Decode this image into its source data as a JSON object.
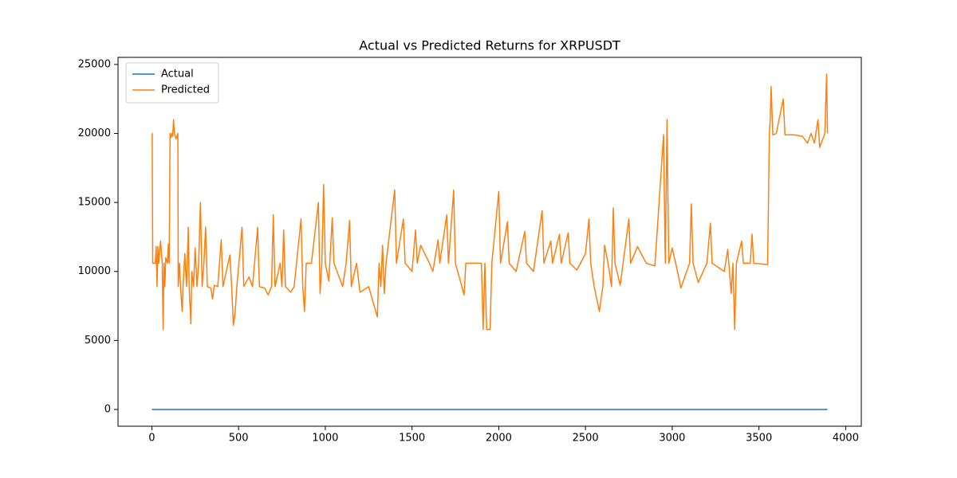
{
  "chart_data": {
    "type": "line",
    "title": "Actual vs Predicted Returns for XRPUSDT",
    "xlim": [
      -195,
      4090
    ],
    "ylim": [
      -1215,
      25515
    ],
    "xticks": [
      0,
      500,
      1000,
      1500,
      2000,
      2500,
      3000,
      3500,
      4000
    ],
    "yticks": [
      0,
      5000,
      10000,
      15000,
      20000,
      25000
    ],
    "legend": "upper left",
    "series": [
      {
        "name": "Actual",
        "color": "#1f77b4",
        "x": [
          0,
          3895
        ],
        "values": [
          0,
          0
        ]
      },
      {
        "name": "Predicted",
        "color": "#ff7f0e",
        "x": [
          0,
          2,
          5,
          20,
          25,
          30,
          35,
          40,
          50,
          60,
          65,
          70,
          75,
          80,
          90,
          95,
          100,
          105,
          110,
          115,
          120,
          125,
          130,
          140,
          150,
          152,
          160,
          165,
          175,
          180,
          190,
          200,
          210,
          215,
          225,
          230,
          240,
          250,
          260,
          270,
          280,
          290,
          300,
          310,
          320,
          340,
          350,
          360,
          380,
          400,
          410,
          450,
          460,
          470,
          480,
          490,
          520,
          530,
          560,
          580,
          610,
          620,
          650,
          670,
          690,
          700,
          710,
          740,
          750,
          760,
          770,
          800,
          820,
          860,
          870,
          880,
          890,
          920,
          960,
          970,
          980,
          990,
          1000,
          1020,
          1040,
          1050,
          1100,
          1120,
          1140,
          1150,
          1180,
          1200,
          1250,
          1300,
          1310,
          1320,
          1330,
          1340,
          1350,
          1400,
          1410,
          1450,
          1460,
          1500,
          1520,
          1530,
          1550,
          1600,
          1620,
          1650,
          1660,
          1700,
          1710,
          1740,
          1750,
          1800,
          1810,
          1900,
          1910,
          1920,
          1930,
          1950,
          1960,
          2000,
          2010,
          2050,
          2060,
          2100,
          2150,
          2160,
          2200,
          2250,
          2260,
          2300,
          2310,
          2350,
          2360,
          2400,
          2410,
          2450,
          2500,
          2520,
          2530,
          2550,
          2580,
          2600,
          2610,
          2630,
          2650,
          2660,
          2670,
          2700,
          2750,
          2760,
          2800,
          2850,
          2900,
          2950,
          2960,
          2970,
          2980,
          3000,
          3020,
          3050,
          3100,
          3110,
          3120,
          3150,
          3200,
          3220,
          3230,
          3300,
          3320,
          3340,
          3350,
          3360,
          3370,
          3400,
          3410,
          3450,
          3460,
          3470,
          3550,
          3560,
          3565,
          3570,
          3580,
          3600,
          3640,
          3650,
          3700,
          3750,
          3780,
          3800,
          3820,
          3840,
          3850,
          3880,
          3890,
          3895
        ],
        "values": [
          20000,
          20000,
          10600,
          10600,
          11800,
          8900,
          11800,
          10600,
          12200,
          10600,
          5800,
          10600,
          8900,
          11000,
          10600,
          12000,
          10600,
          20000,
          19700,
          20000,
          19800,
          21000,
          20000,
          19600,
          20000,
          8900,
          10600,
          8900,
          7100,
          8900,
          11300,
          8900,
          13200,
          8900,
          6200,
          10000,
          8900,
          11700,
          8900,
          10600,
          15000,
          8900,
          10600,
          13200,
          8900,
          8800,
          8000,
          9000,
          8900,
          12300,
          8900,
          11200,
          8900,
          6100,
          7000,
          8900,
          13200,
          8900,
          9600,
          8900,
          13200,
          8900,
          8800,
          8300,
          8900,
          14100,
          8900,
          10600,
          8900,
          13000,
          8900,
          8500,
          8900,
          13800,
          8900,
          7100,
          10600,
          10600,
          15000,
          8400,
          10600,
          16300,
          10600,
          9300,
          13900,
          10600,
          8900,
          10600,
          13700,
          8900,
          10600,
          8500,
          8900,
          6700,
          10600,
          8900,
          11900,
          8400,
          10600,
          15900,
          10600,
          13800,
          10600,
          10000,
          13000,
          10600,
          11900,
          10600,
          10000,
          12300,
          10600,
          14100,
          10600,
          15900,
          10600,
          8300,
          10600,
          10600,
          5800,
          10600,
          5800,
          5800,
          10600,
          15800,
          10600,
          13600,
          10600,
          10000,
          12900,
          10600,
          10000,
          14400,
          10600,
          12200,
          10600,
          12700,
          10600,
          12800,
          10600,
          10100,
          11300,
          13800,
          10600,
          8900,
          7100,
          8900,
          11900,
          10600,
          8900,
          14600,
          10600,
          9000,
          13800,
          10600,
          11800,
          10600,
          10400,
          19900,
          10600,
          21000,
          10600,
          11700,
          10600,
          8800,
          10600,
          14900,
          10600,
          9200,
          10600,
          13500,
          10600,
          10000,
          11600,
          8400,
          10600,
          5800,
          10600,
          12200,
          10600,
          10600,
          12700,
          10600,
          10500,
          20000,
          21000,
          23400,
          19900,
          20000,
          22500,
          19900,
          19900,
          19800,
          19300,
          20000,
          19300,
          21000,
          19000,
          20000,
          24300,
          20000
        ]
      }
    ]
  }
}
